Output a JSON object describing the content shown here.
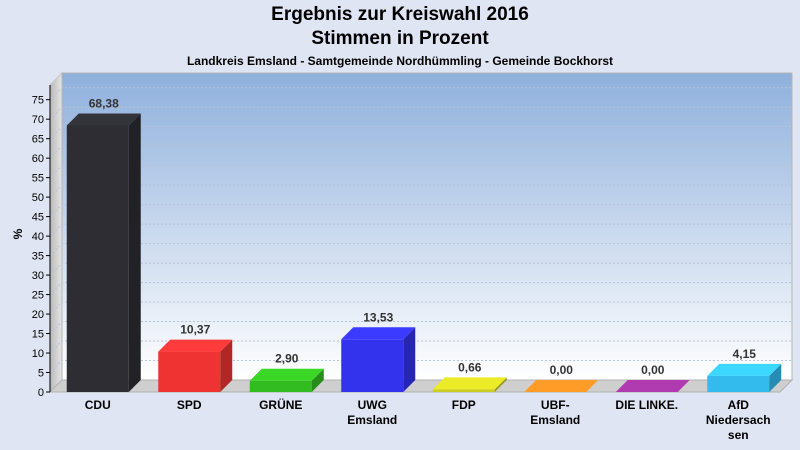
{
  "header": {
    "title_line1": "Ergebnis zur Kreiswahl 2016",
    "title_line2": "Stimmen in Prozent",
    "subtitle": "Landkreis Emsland - Samtgemeinde Nordhümmling - Gemeinde Bockhorst"
  },
  "chart_data": {
    "type": "bar",
    "title": "Ergebnis zur Kreiswahl 2016 Stimmen in Prozent",
    "subtitle": "Landkreis Emsland - Samtgemeinde Nordhümmling - Gemeinde Bockhorst",
    "ylabel": "%",
    "xlabel": "",
    "ylim": [
      0,
      78
    ],
    "yticks": [
      0,
      5,
      10,
      15,
      20,
      25,
      30,
      35,
      40,
      45,
      50,
      55,
      60,
      65,
      70,
      75
    ],
    "grid": true,
    "categories": [
      [
        "CDU"
      ],
      [
        "SPD"
      ],
      [
        "GRÜNE"
      ],
      [
        "UWG",
        "Emsland"
      ],
      [
        "FDP"
      ],
      [
        "UBF-",
        "Emsland"
      ],
      [
        "DIE LINKE."
      ],
      [
        "AfD",
        "Niedersach",
        "sen"
      ]
    ],
    "values": [
      68.38,
      10.37,
      2.9,
      13.53,
      0.66,
      0.0,
      0.0,
      4.15
    ],
    "value_labels": [
      "68,38",
      "10,37",
      "2,90",
      "13,53",
      "0,66",
      "0,00",
      "0,00",
      "4,15"
    ],
    "colors": [
      "#2d2d33",
      "#ef3333",
      "#33bb22",
      "#3333ee",
      "#cccc22",
      "#ee8822",
      "#993399",
      "#33bbee"
    ]
  }
}
